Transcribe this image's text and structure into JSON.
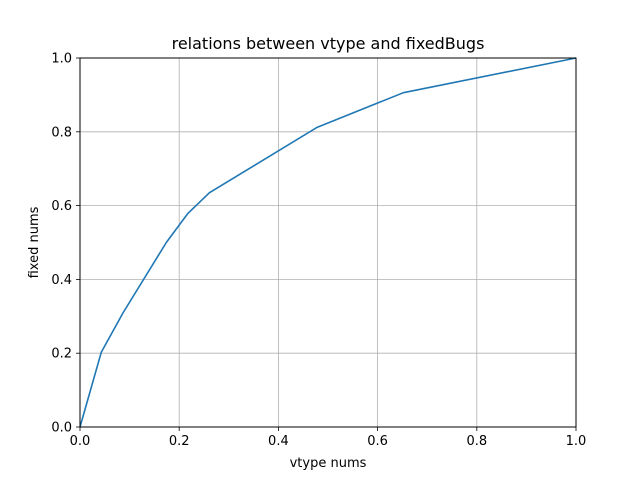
{
  "chart_data": {
    "type": "line",
    "title": "relations between vtype and fixedBugs",
    "xlabel": "vtype nums",
    "ylabel": "fixed nums",
    "xlim": [
      0.0,
      1.0
    ],
    "ylim": [
      0.0,
      1.0
    ],
    "xticks": [
      "0.0",
      "0.2",
      "0.4",
      "0.6",
      "0.8",
      "1.0"
    ],
    "yticks": [
      "0.0",
      "0.2",
      "0.4",
      "0.6",
      "0.8",
      "1.0"
    ],
    "grid": true,
    "series": [
      {
        "color": "#1f77b4",
        "x": [
          0.0,
          0.043,
          0.087,
          0.174,
          0.217,
          0.261,
          0.478,
          0.652,
          1.0
        ],
        "y": [
          0.0,
          0.203,
          0.31,
          0.5,
          0.578,
          0.635,
          0.812,
          0.906,
          1.0
        ]
      }
    ]
  }
}
